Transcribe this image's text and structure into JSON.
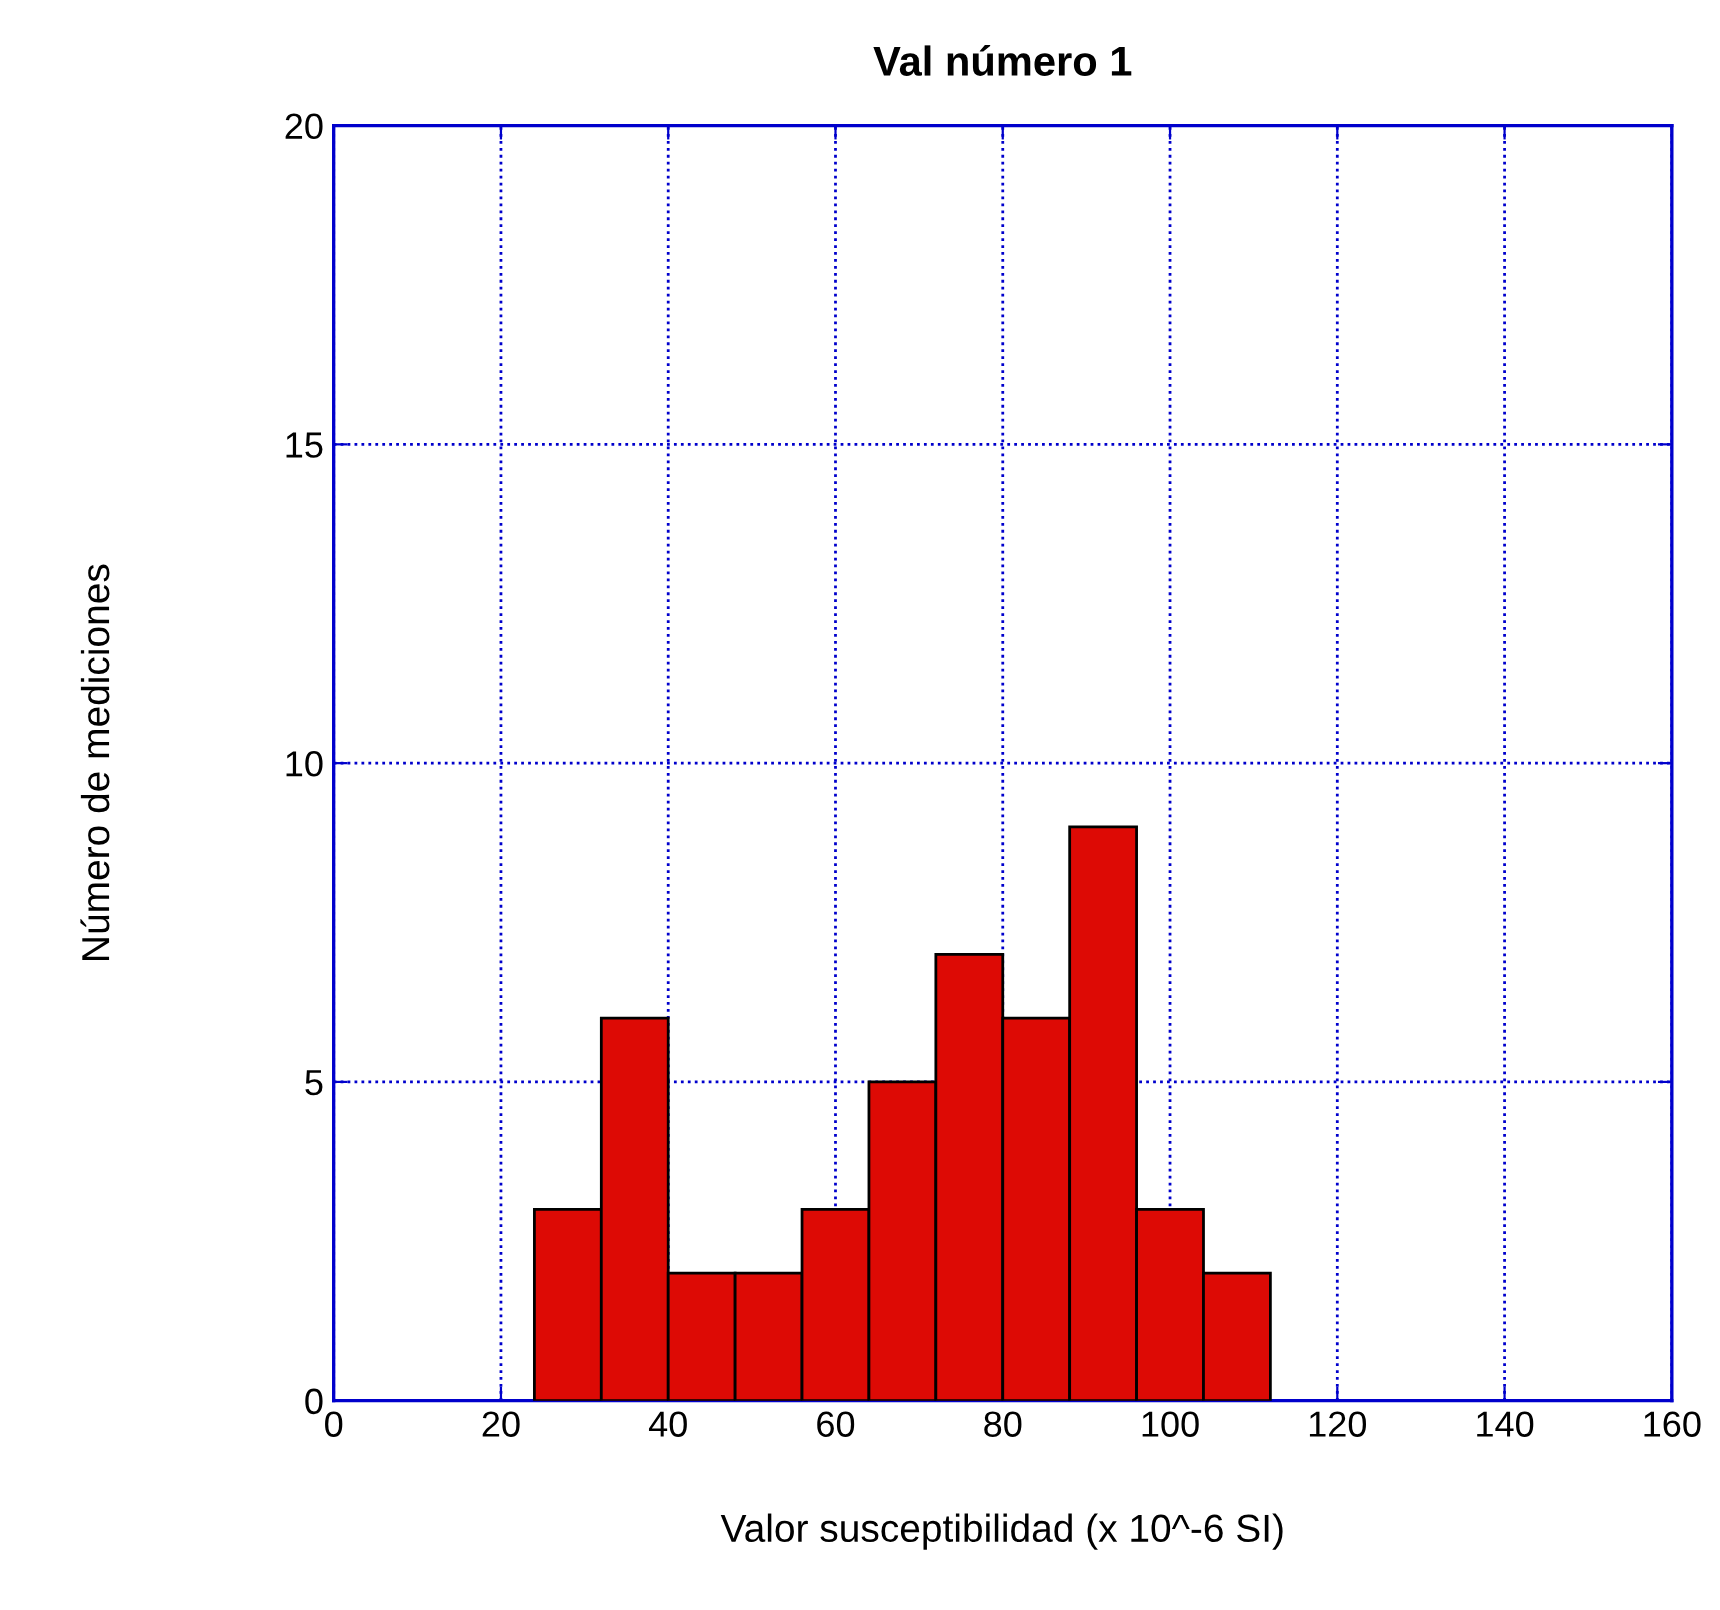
{
  "chart_data": {
    "type": "histogram",
    "title": "Val número 1",
    "xlabel": "Valor susceptibilidad (x 10^-6 SI)",
    "ylabel": "Número de mediciones",
    "bins": [
      24,
      32,
      40,
      48,
      56,
      64,
      72,
      80,
      88,
      96,
      104,
      112
    ],
    "values": [
      3,
      6,
      2,
      2,
      3,
      5,
      7,
      6,
      9,
      3,
      2
    ],
    "color": "#dd0a05",
    "xlim": [
      0,
      160
    ],
    "ylim": [
      0,
      20
    ],
    "xticks": [
      0,
      20,
      40,
      60,
      80,
      100,
      120,
      140,
      160
    ],
    "yticks": [
      0,
      5,
      10,
      15,
      20
    ],
    "grid": true,
    "legend": false
  }
}
